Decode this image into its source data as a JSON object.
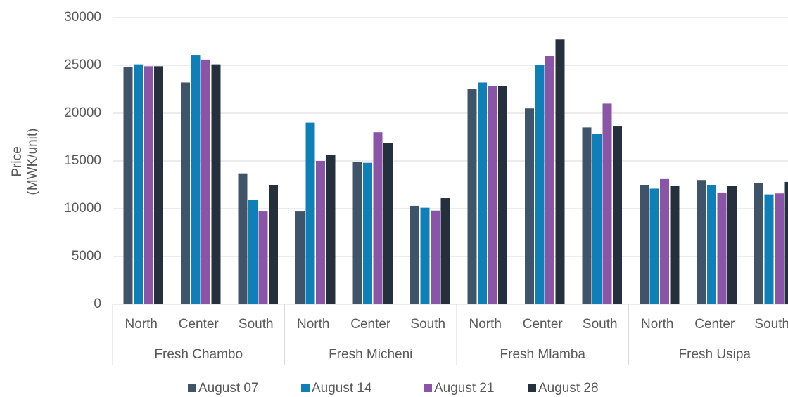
{
  "chart_data": {
    "type": "bar",
    "ylabel": [
      "Price",
      "(MWK/unit)"
    ],
    "groups": [
      "Fresh Chambo",
      "Fresh Micheni",
      "Fresh Mlamba",
      "Fresh Usipa"
    ],
    "categories": [
      "North",
      "Center",
      "South",
      "North",
      "Center",
      "South",
      "North",
      "Center",
      "South",
      "North",
      "Center",
      "South"
    ],
    "series": [
      {
        "name": "August 07",
        "color": "#3f5468",
        "values": [
          24800,
          23200,
          13700,
          9700,
          14900,
          10300,
          22500,
          20500,
          18500,
          12500,
          13000,
          12700
        ]
      },
      {
        "name": "August 14",
        "color": "#0f7fb8",
        "values": [
          25100,
          26100,
          10900,
          19000,
          14800,
          10100,
          23200,
          25000,
          17800,
          12100,
          12500,
          11500
        ]
      },
      {
        "name": "August 21",
        "color": "#8a55a6",
        "values": [
          24900,
          25600,
          9700,
          15000,
          18000,
          9800,
          22800,
          26000,
          21000,
          13100,
          11700,
          11600
        ]
      },
      {
        "name": "August 28",
        "color": "#24313d",
        "values": [
          24900,
          25100,
          12500,
          15600,
          16900,
          11100,
          22800,
          27700,
          18600,
          12400,
          12400,
          12800
        ]
      }
    ],
    "ylim": [
      0,
      30000
    ],
    "yticks": [
      0,
      5000,
      10000,
      15000,
      20000,
      25000,
      30000
    ],
    "grid": true,
    "legend": "bottom"
  }
}
